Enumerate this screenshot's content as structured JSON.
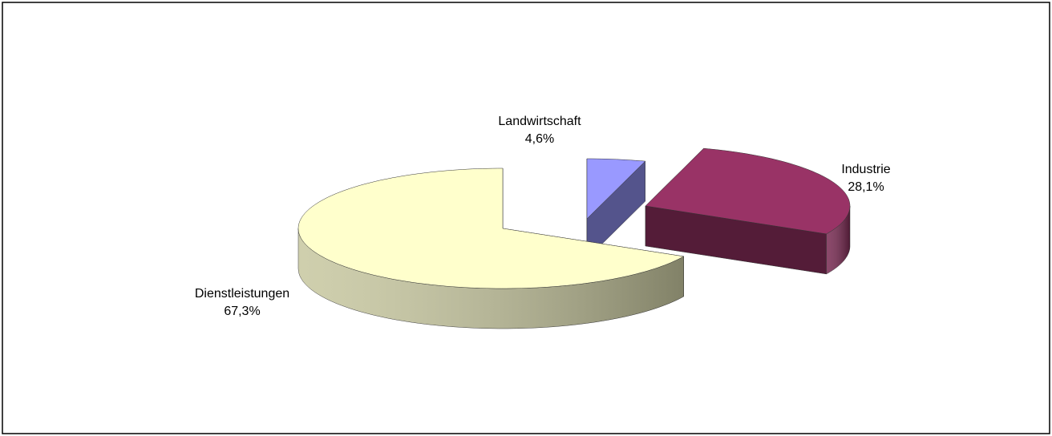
{
  "chart_data": {
    "type": "pie3d",
    "categories": [
      "Landwirtschaft",
      "Industrie",
      "Dienstleistungen"
    ],
    "values": [
      4.6,
      28.1,
      67.3
    ],
    "value_labels": [
      "4,6%",
      "28,1%",
      "67,3%"
    ],
    "colors": [
      "#9999ff",
      "#993366",
      "#ffffcc"
    ]
  }
}
